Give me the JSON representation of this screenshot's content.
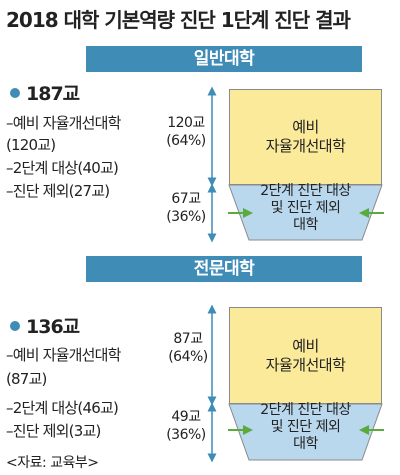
{
  "title": "2018 대학 기본역량 진단 1단계 진단 결과",
  "sections": [
    {
      "banner": "일반대학",
      "total": "187교",
      "breakdown": [
        "–예비 자율개선대학",
        "(120교)",
        "–2단계 대상(40교)",
        "–진단 제외(27교)"
      ],
      "upper_count": "120교",
      "upper_pct": "(64%)",
      "lower_count": "67교",
      "lower_pct": "(36%)",
      "upper_box": [
        "예비",
        "자율개선대학"
      ],
      "lower_box": [
        "2단계 진단 대상",
        "및 진단 제외",
        "대학"
      ]
    },
    {
      "banner": "전문대학",
      "total": "136교",
      "breakdown": [
        "–예비 자율개선대학",
        "(87교)",
        "–2단계 대상(46교)",
        "–진단 제외(3교)"
      ],
      "upper_count": "87교",
      "upper_pct": "(64%)",
      "lower_count": "49교",
      "lower_pct": "(36%)",
      "upper_box": [
        "예비",
        "자율개선대학"
      ],
      "lower_box": [
        "2단계 진단 대상",
        "및 진단 제외",
        "대학"
      ]
    }
  ],
  "source": "<자료: 교육부>",
  "colors": {
    "banner": "#3f8cb7",
    "upper_box": "#fbea9a",
    "lower_trapezoid": "#b9d8ee",
    "arrow_green": "#5aaa3c",
    "arrow_blue": "#3f8cb7"
  }
}
